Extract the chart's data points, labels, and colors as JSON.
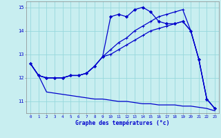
{
  "hours": [
    0,
    1,
    2,
    3,
    4,
    5,
    6,
    7,
    8,
    9,
    10,
    11,
    12,
    13,
    14,
    15,
    16,
    17,
    18,
    19,
    20,
    21,
    22,
    23
  ],
  "line1": [
    12.6,
    12.1,
    12.0,
    12.0,
    12.0,
    12.1,
    12.1,
    12.2,
    12.5,
    12.9,
    14.6,
    14.7,
    14.6,
    14.9,
    15.0,
    14.8,
    14.4,
    14.3,
    14.3,
    14.4,
    14.0,
    12.8,
    11.1,
    10.7
  ],
  "line2": [
    12.6,
    12.1,
    12.0,
    12.0,
    12.0,
    12.1,
    12.1,
    12.2,
    12.5,
    12.9,
    13.2,
    13.5,
    13.7,
    14.0,
    14.2,
    14.4,
    14.6,
    14.7,
    14.8,
    14.9,
    14.0,
    12.8,
    11.1,
    10.7
  ],
  "line3": [
    12.6,
    12.1,
    12.0,
    12.0,
    12.0,
    12.1,
    12.1,
    12.2,
    12.5,
    12.9,
    13.0,
    13.2,
    13.4,
    13.6,
    13.8,
    14.0,
    14.1,
    14.2,
    14.3,
    14.4,
    14.0,
    12.8,
    11.1,
    10.7
  ],
  "line4": [
    12.6,
    12.1,
    11.4,
    11.35,
    11.3,
    11.25,
    11.2,
    11.15,
    11.1,
    11.1,
    11.05,
    11.0,
    11.0,
    10.95,
    10.9,
    10.9,
    10.85,
    10.85,
    10.85,
    10.8,
    10.8,
    10.75,
    10.7,
    10.6
  ],
  "line_color": "#0000cc",
  "bg_color": "#c8eef0",
  "grid_color": "#96d8dc",
  "xlabel": "Graphe des températures (°c)",
  "ylim": [
    10.5,
    15.25
  ],
  "xlim": [
    -0.5,
    23.5
  ]
}
